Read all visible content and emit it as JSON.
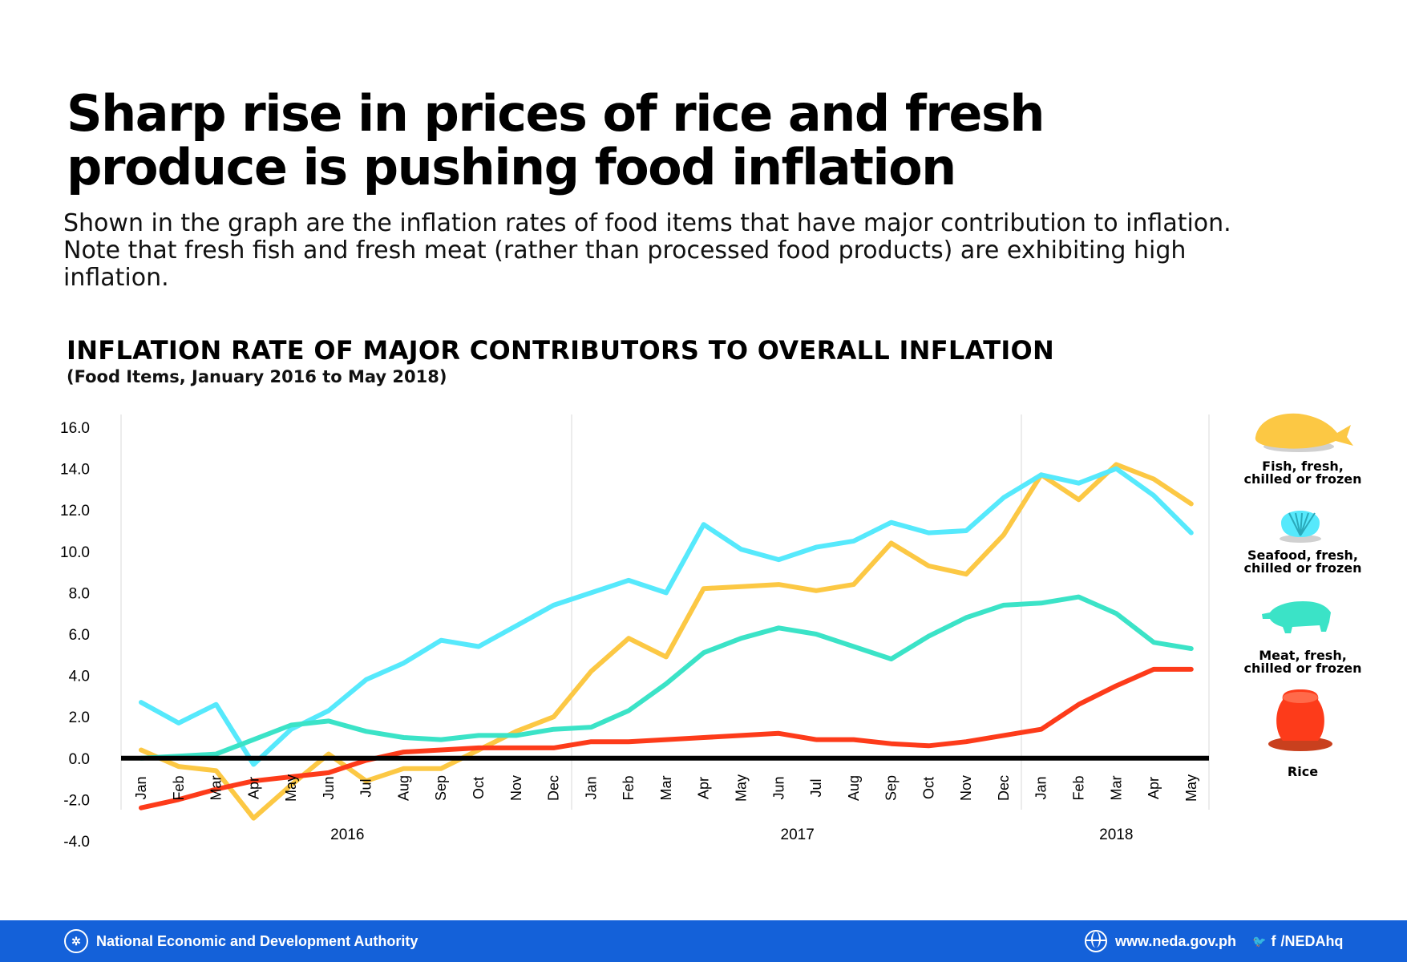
{
  "headline": {
    "line1": "Sharp rise in prices of rice and fresh",
    "line2": "produce is pushing food inflation"
  },
  "intro": {
    "line1": "Shown in the graph are the inflation rates of food items that have major contribution to inflation.",
    "line2": "Note that fresh fish and fresh meat (rather than processed food products) are exhibiting high",
    "line3": "inflation."
  },
  "chart_data": {
    "type": "line",
    "title": "INFLATION RATE OF MAJOR CONTRIBUTORS TO OVERALL INFLATION",
    "subtitle": "(Food Items, January 2016 to May 2018)",
    "xlabel": "",
    "ylabel": "",
    "ylim": [
      -4.0,
      16.0
    ],
    "yticks": [
      "16.0",
      "14.0",
      "12.0",
      "10.0",
      "8.0",
      "6.0",
      "4.0",
      "2.0",
      "0.0",
      "-2.0",
      "-4.0"
    ],
    "grid": false,
    "legend_position": "right",
    "categories": [
      "Jan",
      "Feb",
      "Mar",
      "Apr",
      "May",
      "Jun",
      "Jul",
      "Aug",
      "Sep",
      "Oct",
      "Nov",
      "Dec",
      "Jan",
      "Feb",
      "Mar",
      "Apr",
      "May",
      "Jun",
      "Jul",
      "Aug",
      "Sep",
      "Oct",
      "Nov",
      "Dec",
      "Jan",
      "Feb",
      "Mar",
      "Apr",
      "May"
    ],
    "years": [
      {
        "label": "2016",
        "start": 0,
        "end": 11
      },
      {
        "label": "2017",
        "start": 12,
        "end": 23
      },
      {
        "label": "2018",
        "start": 24,
        "end": 28
      }
    ],
    "series": [
      {
        "name": "Fish, fresh, chilled or frozen",
        "name_lines": [
          "Fish, fresh,",
          "chilled or frozen"
        ],
        "color": "#fcc844",
        "icon": "fish-icon",
        "values": [
          0.4,
          -0.4,
          -0.6,
          -2.9,
          -1.3,
          0.2,
          -1.1,
          -0.5,
          -0.5,
          0.4,
          1.3,
          2.0,
          4.2,
          5.8,
          4.9,
          8.2,
          8.3,
          8.4,
          8.1,
          8.4,
          10.4,
          9.3,
          8.9,
          10.8,
          13.7,
          12.5,
          14.2,
          13.5,
          12.3
        ]
      },
      {
        "name": "Seafood, fresh, chilled or frozen",
        "name_lines": [
          "Seafood, fresh,",
          "chilled or frozen"
        ],
        "color": "#56e9fc",
        "icon": "shell-icon",
        "values": [
          2.7,
          1.7,
          2.6,
          -0.3,
          1.4,
          2.3,
          3.8,
          4.6,
          5.7,
          5.4,
          6.4,
          7.4,
          8.0,
          8.6,
          8.0,
          11.3,
          10.1,
          9.6,
          10.2,
          10.5,
          11.4,
          10.9,
          11.0,
          12.6,
          13.7,
          13.3,
          14.0,
          12.7,
          10.9
        ]
      },
      {
        "name": "Meat, fresh, chilled or frozen",
        "name_lines": [
          "Meat, fresh,",
          "chilled or frozen"
        ],
        "color": "#3be3c7",
        "icon": "pig-icon",
        "values": [
          0.0,
          0.1,
          0.2,
          0.9,
          1.6,
          1.8,
          1.3,
          1.0,
          0.9,
          1.1,
          1.1,
          1.4,
          1.5,
          2.3,
          3.6,
          5.1,
          5.8,
          6.3,
          6.0,
          5.4,
          4.8,
          5.9,
          6.8,
          7.4,
          7.5,
          7.8,
          7.0,
          5.6,
          5.3
        ]
      },
      {
        "name": "Rice",
        "name_lines": [
          "Rice"
        ],
        "color": "#fd3b1a",
        "icon": "rice-sack-icon",
        "values": [
          -2.4,
          -2.0,
          -1.5,
          -1.1,
          -0.9,
          -0.7,
          -0.1,
          0.3,
          0.4,
          0.5,
          0.5,
          0.5,
          0.8,
          0.8,
          0.9,
          1.0,
          1.1,
          1.2,
          0.9,
          0.9,
          0.7,
          0.6,
          0.8,
          1.1,
          1.4,
          2.6,
          3.5,
          4.3,
          4.3
        ]
      }
    ]
  },
  "footer": {
    "org": "National Economic and Development Authority",
    "website": "www.neda.gov.ph",
    "social": "/NEDAhq",
    "twitter_glyph": "🐦",
    "facebook_glyph": "f",
    "seal_glyph": "✲"
  }
}
